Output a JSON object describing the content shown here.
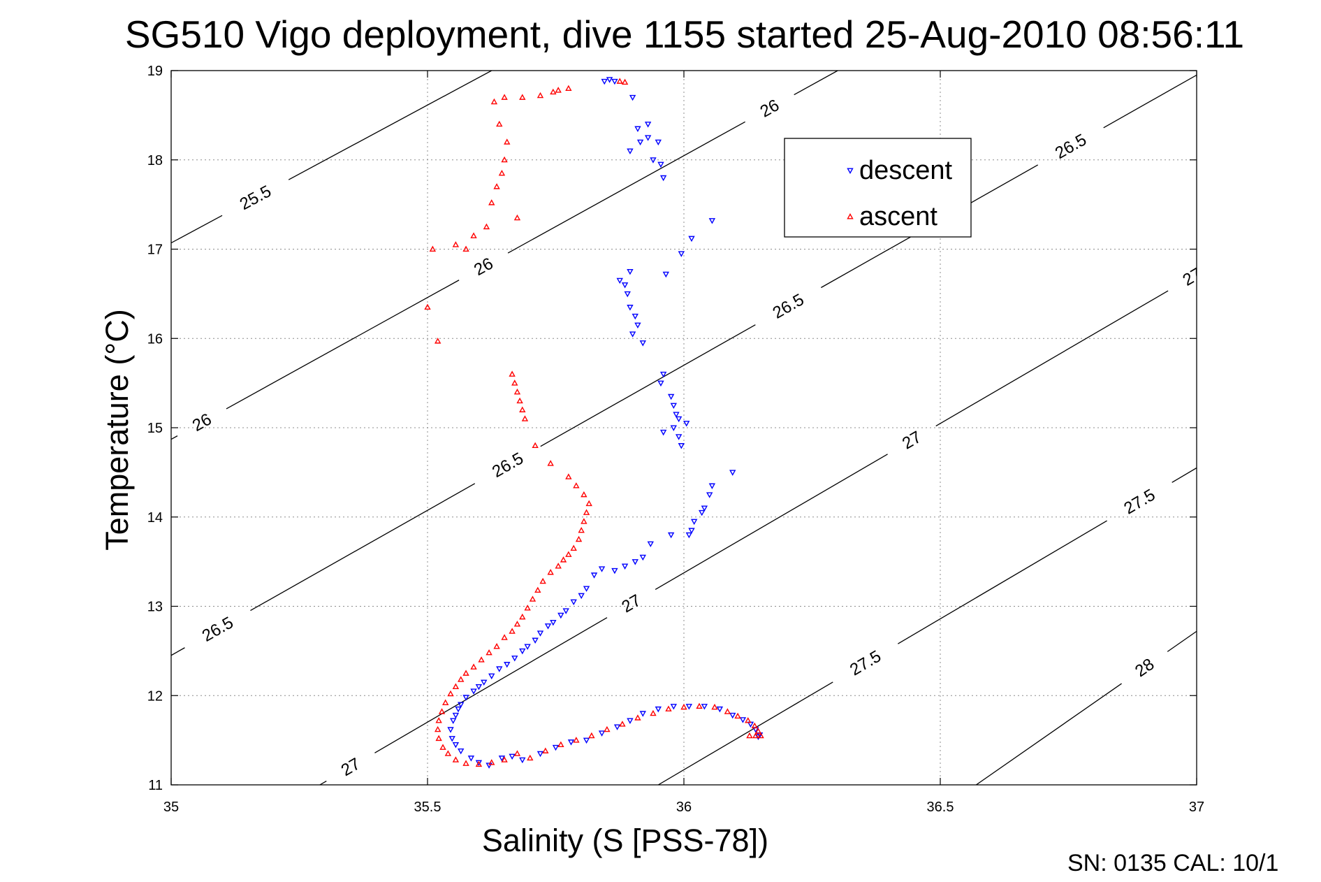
{
  "chart_data": {
    "type": "scatter",
    "title": "SG510 Vigo deployment, dive 1155 started 25-Aug-2010 08:56:11",
    "xlabel": "Salinity (S [PSS-78])",
    "ylabel": "Temperature (°C)",
    "xlim": [
      35,
      37
    ],
    "ylim": [
      11,
      19
    ],
    "x_ticks": [
      35,
      35.5,
      36,
      36.5,
      37
    ],
    "y_ticks": [
      11,
      12,
      13,
      14,
      15,
      16,
      17,
      18,
      19
    ],
    "x_tick_labels": [
      "35",
      "35.5",
      "36",
      "36.5",
      "37"
    ],
    "y_tick_labels": [
      "11",
      "12",
      "13",
      "14",
      "15",
      "16",
      "17",
      "18",
      "19"
    ],
    "grid": true,
    "legend_position": "upper-right",
    "footer": "SN: 0135  CAL: 10/1",
    "contours": [
      {
        "label": "25.5",
        "points": [
          [
            35,
            17.07
          ],
          [
            35.625,
            19
          ]
        ],
        "labels": [
          {
            "x": 35.165,
            "y": 17.57
          }
        ]
      },
      {
        "label": "26",
        "points": [
          [
            35,
            14.87
          ],
          [
            36.3,
            19
          ]
        ],
        "labels": [
          {
            "x": 35.06,
            "y": 15.06
          },
          {
            "x": 35.6,
            "y": 16.9
          },
          {
            "x": 36.165,
            "y": 18.6
          }
        ]
      },
      {
        "label": "26.5",
        "points": [
          [
            35,
            12.45
          ],
          [
            37,
            18.95
          ]
        ],
        "labels": [
          {
            "x": 35.09,
            "y": 12.75
          },
          {
            "x": 35.635,
            "y": 14.8
          },
          {
            "x": 36.18,
            "y": 16.6
          },
          {
            "x": 36.725,
            "y": 18.45
          }
        ]
      },
      {
        "label": "27",
        "points": [
          [
            35.29,
            11
          ],
          [
            37,
            16.72
          ]
        ],
        "labels": [
          {
            "x": 35.35,
            "y": 11.2
          },
          {
            "x": 35.87,
            "y": 13.3
          },
          {
            "x": 36.405,
            "y": 15.25
          },
          {
            "x": 36.955,
            "y": 17.05
          }
        ]
      },
      {
        "label": "27.5",
        "points": [
          [
            35.95,
            11
          ],
          [
            37,
            14.55
          ]
        ],
        "labels": [
          {
            "x": 36.33,
            "y": 12.6
          },
          {
            "x": 36.855,
            "y": 14.5
          }
        ]
      },
      {
        "label": "28",
        "points": [
          [
            36.57,
            11
          ],
          [
            37,
            12.72
          ]
        ],
        "labels": [
          {
            "x": 36.9,
            "y": 12.3
          }
        ]
      }
    ],
    "series": [
      {
        "name": "descent",
        "color": "#0000ff",
        "marker": "triangle-down",
        "points": [
          [
            35.845,
            18.88
          ],
          [
            35.855,
            18.9
          ],
          [
            35.865,
            18.88
          ],
          [
            35.9,
            18.7
          ],
          [
            35.93,
            18.4
          ],
          [
            35.91,
            18.35
          ],
          [
            35.93,
            18.25
          ],
          [
            35.95,
            18.2
          ],
          [
            35.915,
            18.2
          ],
          [
            35.895,
            18.1
          ],
          [
            35.94,
            18.0
          ],
          [
            35.955,
            17.95
          ],
          [
            35.96,
            17.8
          ],
          [
            36.055,
            17.32
          ],
          [
            36.015,
            17.12
          ],
          [
            35.995,
            16.95
          ],
          [
            35.965,
            16.72
          ],
          [
            35.895,
            16.75
          ],
          [
            35.875,
            16.65
          ],
          [
            35.885,
            16.6
          ],
          [
            35.89,
            16.5
          ],
          [
            35.895,
            16.35
          ],
          [
            35.905,
            16.25
          ],
          [
            35.91,
            16.15
          ],
          [
            35.9,
            16.05
          ],
          [
            35.92,
            15.95
          ],
          [
            35.96,
            15.6
          ],
          [
            35.955,
            15.5
          ],
          [
            35.975,
            15.35
          ],
          [
            35.98,
            15.25
          ],
          [
            35.985,
            15.15
          ],
          [
            35.99,
            15.1
          ],
          [
            36.005,
            15.05
          ],
          [
            35.98,
            15.0
          ],
          [
            35.99,
            14.9
          ],
          [
            35.96,
            14.95
          ],
          [
            35.995,
            14.8
          ],
          [
            36.095,
            14.5
          ],
          [
            36.055,
            14.35
          ],
          [
            36.05,
            14.25
          ],
          [
            36.04,
            14.1
          ],
          [
            36.035,
            14.05
          ],
          [
            36.02,
            13.95
          ],
          [
            36.015,
            13.85
          ],
          [
            36.01,
            13.8
          ],
          [
            35.975,
            13.8
          ],
          [
            35.935,
            13.7
          ],
          [
            35.92,
            13.55
          ],
          [
            35.905,
            13.5
          ],
          [
            35.885,
            13.45
          ],
          [
            35.865,
            13.4
          ],
          [
            35.84,
            13.42
          ],
          [
            35.825,
            13.35
          ],
          [
            35.81,
            13.2
          ],
          [
            35.8,
            13.12
          ],
          [
            35.785,
            13.05
          ],
          [
            35.77,
            12.95
          ],
          [
            35.76,
            12.9
          ],
          [
            35.745,
            12.82
          ],
          [
            35.735,
            12.78
          ],
          [
            35.72,
            12.7
          ],
          [
            35.71,
            12.62
          ],
          [
            35.695,
            12.55
          ],
          [
            35.685,
            12.5
          ],
          [
            35.67,
            12.42
          ],
          [
            35.655,
            12.35
          ],
          [
            35.64,
            12.3
          ],
          [
            35.625,
            12.22
          ],
          [
            35.61,
            12.15
          ],
          [
            35.6,
            12.1
          ],
          [
            35.59,
            12.05
          ],
          [
            35.575,
            11.98
          ],
          [
            35.565,
            11.9
          ],
          [
            35.56,
            11.85
          ],
          [
            35.555,
            11.78
          ],
          [
            35.55,
            11.72
          ],
          [
            35.545,
            11.62
          ],
          [
            35.548,
            11.52
          ],
          [
            35.555,
            11.45
          ],
          [
            35.565,
            11.38
          ],
          [
            35.585,
            11.3
          ],
          [
            35.6,
            11.25
          ],
          [
            35.62,
            11.22
          ],
          [
            35.645,
            11.3
          ],
          [
            35.665,
            11.32
          ],
          [
            35.685,
            11.28
          ],
          [
            35.72,
            11.35
          ],
          [
            35.75,
            11.42
          ],
          [
            35.78,
            11.48
          ],
          [
            35.81,
            11.5
          ],
          [
            35.84,
            11.58
          ],
          [
            35.87,
            11.65
          ],
          [
            35.895,
            11.72
          ],
          [
            35.92,
            11.8
          ],
          [
            35.95,
            11.85
          ],
          [
            35.98,
            11.88
          ],
          [
            36.01,
            11.88
          ],
          [
            36.04,
            11.88
          ],
          [
            36.07,
            11.85
          ],
          [
            36.095,
            11.78
          ],
          [
            36.115,
            11.73
          ],
          [
            36.13,
            11.68
          ],
          [
            36.14,
            11.62
          ],
          [
            36.148,
            11.56
          ],
          [
            36.145,
            11.54
          ]
        ]
      },
      {
        "name": "ascent",
        "color": "#ff0000",
        "marker": "triangle-up",
        "points": [
          [
            35.885,
            18.87
          ],
          [
            35.875,
            18.88
          ],
          [
            35.775,
            18.8
          ],
          [
            35.755,
            18.78
          ],
          [
            35.745,
            18.76
          ],
          [
            35.72,
            18.72
          ],
          [
            35.685,
            18.7
          ],
          [
            35.65,
            18.7
          ],
          [
            35.63,
            18.65
          ],
          [
            35.64,
            18.4
          ],
          [
            35.655,
            18.2
          ],
          [
            35.65,
            18.0
          ],
          [
            35.645,
            17.85
          ],
          [
            35.635,
            17.7
          ],
          [
            35.625,
            17.52
          ],
          [
            35.675,
            17.35
          ],
          [
            35.615,
            17.25
          ],
          [
            35.59,
            17.15
          ],
          [
            35.575,
            17.0
          ],
          [
            35.555,
            17.05
          ],
          [
            35.51,
            17.0
          ],
          [
            35.5,
            16.35
          ],
          [
            35.52,
            15.97
          ],
          [
            35.665,
            15.6
          ],
          [
            35.67,
            15.5
          ],
          [
            35.675,
            15.4
          ],
          [
            35.68,
            15.3
          ],
          [
            35.685,
            15.2
          ],
          [
            35.69,
            15.1
          ],
          [
            35.71,
            14.8
          ],
          [
            35.74,
            14.6
          ],
          [
            35.775,
            14.45
          ],
          [
            35.79,
            14.35
          ],
          [
            35.805,
            14.25
          ],
          [
            35.815,
            14.15
          ],
          [
            35.81,
            14.05
          ],
          [
            35.805,
            13.95
          ],
          [
            35.8,
            13.85
          ],
          [
            35.795,
            13.75
          ],
          [
            35.785,
            13.65
          ],
          [
            35.775,
            13.58
          ],
          [
            35.765,
            13.52
          ],
          [
            35.755,
            13.45
          ],
          [
            35.74,
            13.38
          ],
          [
            35.725,
            13.28
          ],
          [
            35.715,
            13.18
          ],
          [
            35.705,
            13.08
          ],
          [
            35.695,
            12.98
          ],
          [
            35.685,
            12.88
          ],
          [
            35.675,
            12.8
          ],
          [
            35.665,
            12.72
          ],
          [
            35.65,
            12.65
          ],
          [
            35.635,
            12.55
          ],
          [
            35.62,
            12.48
          ],
          [
            35.605,
            12.4
          ],
          [
            35.59,
            12.32
          ],
          [
            35.575,
            12.25
          ],
          [
            35.565,
            12.18
          ],
          [
            35.555,
            12.1
          ],
          [
            35.545,
            12.02
          ],
          [
            35.535,
            11.92
          ],
          [
            35.528,
            11.82
          ],
          [
            35.522,
            11.72
          ],
          [
            35.52,
            11.62
          ],
          [
            35.522,
            11.52
          ],
          [
            35.53,
            11.42
          ],
          [
            35.54,
            11.35
          ],
          [
            35.555,
            11.28
          ],
          [
            35.575,
            11.24
          ],
          [
            35.6,
            11.23
          ],
          [
            35.625,
            11.25
          ],
          [
            35.65,
            11.28
          ],
          [
            35.675,
            11.35
          ],
          [
            35.7,
            11.3
          ],
          [
            35.73,
            11.38
          ],
          [
            35.76,
            11.45
          ],
          [
            35.79,
            11.5
          ],
          [
            35.82,
            11.55
          ],
          [
            35.85,
            11.62
          ],
          [
            35.88,
            11.68
          ],
          [
            35.91,
            11.75
          ],
          [
            35.94,
            11.8
          ],
          [
            35.97,
            11.85
          ],
          [
            36.0,
            11.87
          ],
          [
            36.03,
            11.88
          ],
          [
            36.06,
            11.87
          ],
          [
            36.085,
            11.82
          ],
          [
            36.105,
            11.77
          ],
          [
            36.125,
            11.72
          ],
          [
            36.138,
            11.66
          ],
          [
            36.145,
            11.6
          ],
          [
            36.15,
            11.55
          ],
          [
            36.14,
            11.55
          ],
          [
            36.128,
            11.55
          ]
        ]
      }
    ]
  }
}
